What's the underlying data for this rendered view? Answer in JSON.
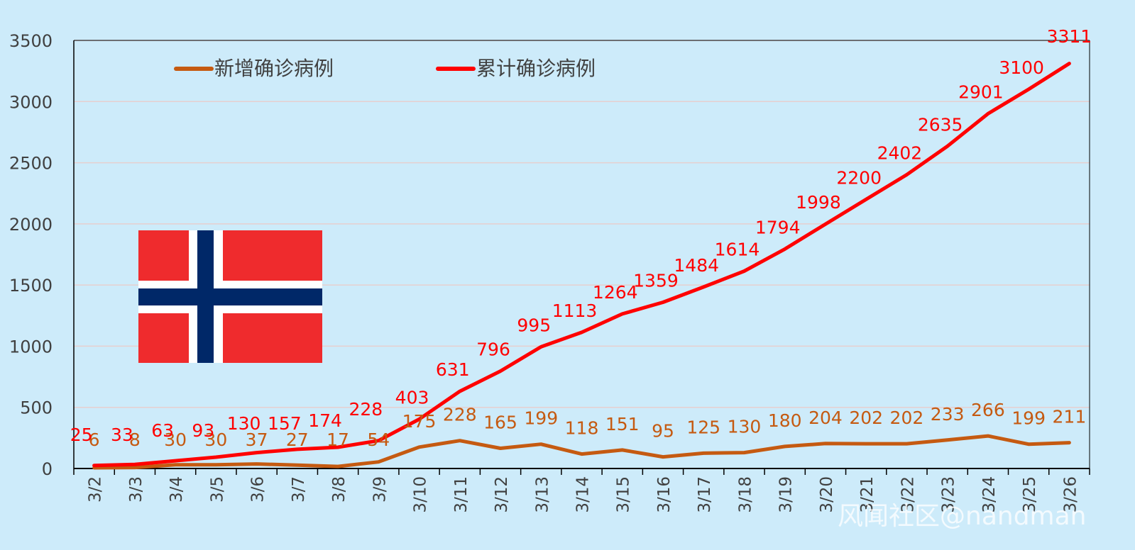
{
  "chart_data": {
    "type": "line",
    "categories": [
      "3/2",
      "3/3",
      "3/4",
      "3/5",
      "3/6",
      "3/7",
      "3/8",
      "3/9",
      "3/10",
      "3/11",
      "3/12",
      "3/13",
      "3/14",
      "3/15",
      "3/16",
      "3/17",
      "3/18",
      "3/19",
      "3/20",
      "3/21",
      "3/22",
      "3/23",
      "3/24",
      "3/25",
      "3/26"
    ],
    "series": [
      {
        "name": "新增确诊病例",
        "color": "#c55a11",
        "values": [
          6,
          8,
          30,
          30,
          37,
          27,
          17,
          54,
          175,
          228,
          165,
          199,
          118,
          151,
          95,
          125,
          130,
          180,
          204,
          202,
          202,
          233,
          266,
          199,
          211
        ]
      },
      {
        "name": "累计确诊病例",
        "color": "#ff0000",
        "values": [
          25,
          33,
          63,
          93,
          130,
          157,
          174,
          228,
          403,
          631,
          796,
          995,
          1113,
          1264,
          1359,
          1484,
          1614,
          1794,
          1998,
          2200,
          2402,
          2635,
          2901,
          3100,
          3311
        ]
      }
    ],
    "ylim": [
      0,
      3500
    ],
    "yticks": [
      0,
      500,
      1000,
      1500,
      2000,
      2500,
      3000,
      3500
    ],
    "legend_position": "top-left",
    "grid": true,
    "flag": "norway-flag"
  },
  "colors": {
    "background": "#cdebfa",
    "plot_background": "#cdebfa",
    "gridline": "#e6cfcf",
    "flag_red": "#ef2b2d",
    "flag_blue": "#002868",
    "flag_white": "#ffffff"
  },
  "watermark": "风闻社区@nandman"
}
